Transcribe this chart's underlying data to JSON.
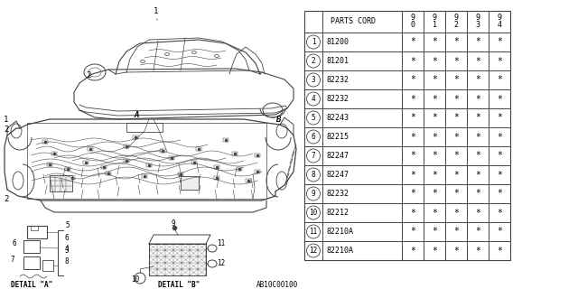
{
  "bg_color": "#ffffff",
  "line_color": "#444444",
  "text_color": "#000000",
  "parts_cord_label": "PARTS CORD",
  "year_cols": [
    "9\n0",
    "9\n1",
    "9\n2",
    "9\n3",
    "9\n4"
  ],
  "rows": [
    {
      "num": 1,
      "part": "81200",
      "stars": [
        "*",
        "*",
        "*",
        "*",
        "*"
      ]
    },
    {
      "num": 2,
      "part": "81201",
      "stars": [
        "*",
        "*",
        "*",
        "*",
        "*"
      ]
    },
    {
      "num": 3,
      "part": "82232",
      "stars": [
        "*",
        "*",
        "*",
        "*",
        "*"
      ]
    },
    {
      "num": 4,
      "part": "82232",
      "stars": [
        "*",
        "*",
        "*",
        "*",
        "*"
      ]
    },
    {
      "num": 5,
      "part": "82243",
      "stars": [
        "*",
        "*",
        "*",
        "*",
        "*"
      ]
    },
    {
      "num": 6,
      "part": "82215",
      "stars": [
        "*",
        "*",
        "*",
        "*",
        "*"
      ]
    },
    {
      "num": 7,
      "part": "82247",
      "stars": [
        "*",
        "*",
        "*",
        "*",
        "*"
      ]
    },
    {
      "num": 8,
      "part": "82247",
      "stars": [
        "*",
        "*",
        "*",
        "*",
        "*"
      ]
    },
    {
      "num": 9,
      "part": "82232",
      "stars": [
        "*",
        "*",
        "*",
        "*",
        "*"
      ]
    },
    {
      "num": 10,
      "part": "82212",
      "stars": [
        "*",
        "*",
        "*",
        "*",
        "*"
      ]
    },
    {
      "num": 11,
      "part": "82210A",
      "stars": [
        "*",
        "*",
        "*",
        "*",
        "*"
      ]
    },
    {
      "num": 12,
      "part": "82210A",
      "stars": [
        "*",
        "*",
        "*",
        "*",
        "*"
      ]
    }
  ],
  "diagram_label": "AB10C00100"
}
